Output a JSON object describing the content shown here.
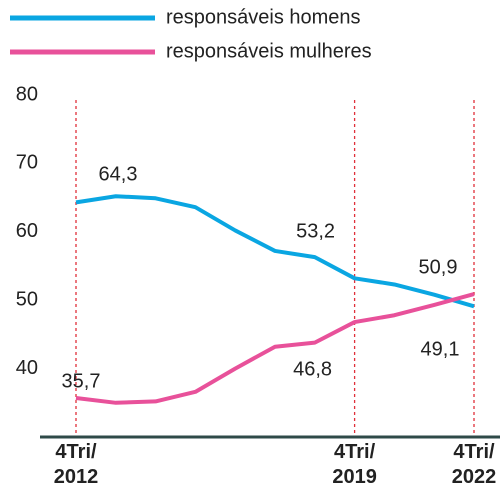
{
  "chart_data": {
    "type": "line",
    "categories": [
      "4Tri/\n2012",
      null,
      null,
      null,
      null,
      null,
      null,
      "4Tri/\n2019",
      null,
      null,
      "4Tri/\n2022"
    ],
    "series": [
      {
        "name": "responsáveis homens",
        "color": "#0aa6e2",
        "values": [
          64.3,
          65.2,
          64.9,
          63.6,
          60.2,
          57.2,
          56.3,
          53.2,
          52.3,
          50.8,
          49.1
        ],
        "value_labels": [
          "64,3",
          null,
          null,
          null,
          null,
          null,
          null,
          "53,2",
          null,
          null,
          "49,1"
        ]
      },
      {
        "name": "responsáveis mulheres",
        "color": "#e8519a",
        "values": [
          35.7,
          35.0,
          35.2,
          36.6,
          40.0,
          43.2,
          43.8,
          46.8,
          47.8,
          49.3,
          50.9
        ],
        "value_labels": [
          "35,7",
          null,
          null,
          null,
          null,
          null,
          null,
          "46,8",
          null,
          null,
          "50,9"
        ]
      }
    ],
    "ylim": [
      30,
      80
    ],
    "yticks": [
      40,
      50,
      60,
      70,
      80
    ]
  }
}
